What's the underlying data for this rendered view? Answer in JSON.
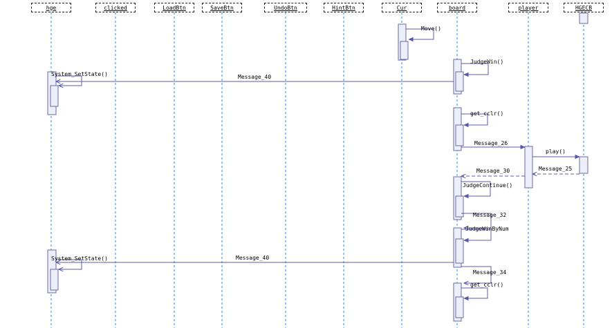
{
  "lifelines": [
    {
      "id": "hge",
      "label": "hge"
    },
    {
      "id": "clicked",
      "label": "clicked"
    },
    {
      "id": "loadbtn",
      "label": "LoadBtn"
    },
    {
      "id": "savebtn",
      "label": "SaveBtn"
    },
    {
      "id": "undobtn",
      "label": "UndoBtn"
    },
    {
      "id": "hintbtn",
      "label": "HintBtn"
    },
    {
      "id": "cur",
      "label": "Cur"
    },
    {
      "id": "board",
      "label": "board"
    },
    {
      "id": "player",
      "label": "player"
    },
    {
      "id": "hgecb",
      "label": "HGECB"
    }
  ],
  "messages": [
    {
      "id": "move",
      "label": "Move()"
    },
    {
      "id": "judgewin",
      "label": "JudgeWin()"
    },
    {
      "id": "setstate-1",
      "label": "System_SetState()"
    },
    {
      "id": "message-40-a",
      "label": "Message_40"
    },
    {
      "id": "get-cclr-1",
      "label": "get_cclr()"
    },
    {
      "id": "message-26",
      "label": "Message_26"
    },
    {
      "id": "play",
      "label": "play()"
    },
    {
      "id": "message-25",
      "label": "Message_25"
    },
    {
      "id": "message-30",
      "label": "Message_30"
    },
    {
      "id": "judgecontinue",
      "label": "JudgeContinue()"
    },
    {
      "id": "message-32",
      "label": "Message_32"
    },
    {
      "id": "judgewinbynum",
      "label": "JudgeWinByNum"
    },
    {
      "id": "setstate-2",
      "label": "System_SetState()"
    },
    {
      "id": "message-40-b",
      "label": "Message_40"
    },
    {
      "id": "message-34",
      "label": "Message_34"
    },
    {
      "id": "get-cclr-2",
      "label": "get_cclr()"
    }
  ],
  "colors": {
    "lifeline": "#3a86d8",
    "arrow": "#5858a8",
    "activation_fill": "#eceefa",
    "activation_stroke": "#6a6aa0",
    "header_border": "#222222"
  }
}
